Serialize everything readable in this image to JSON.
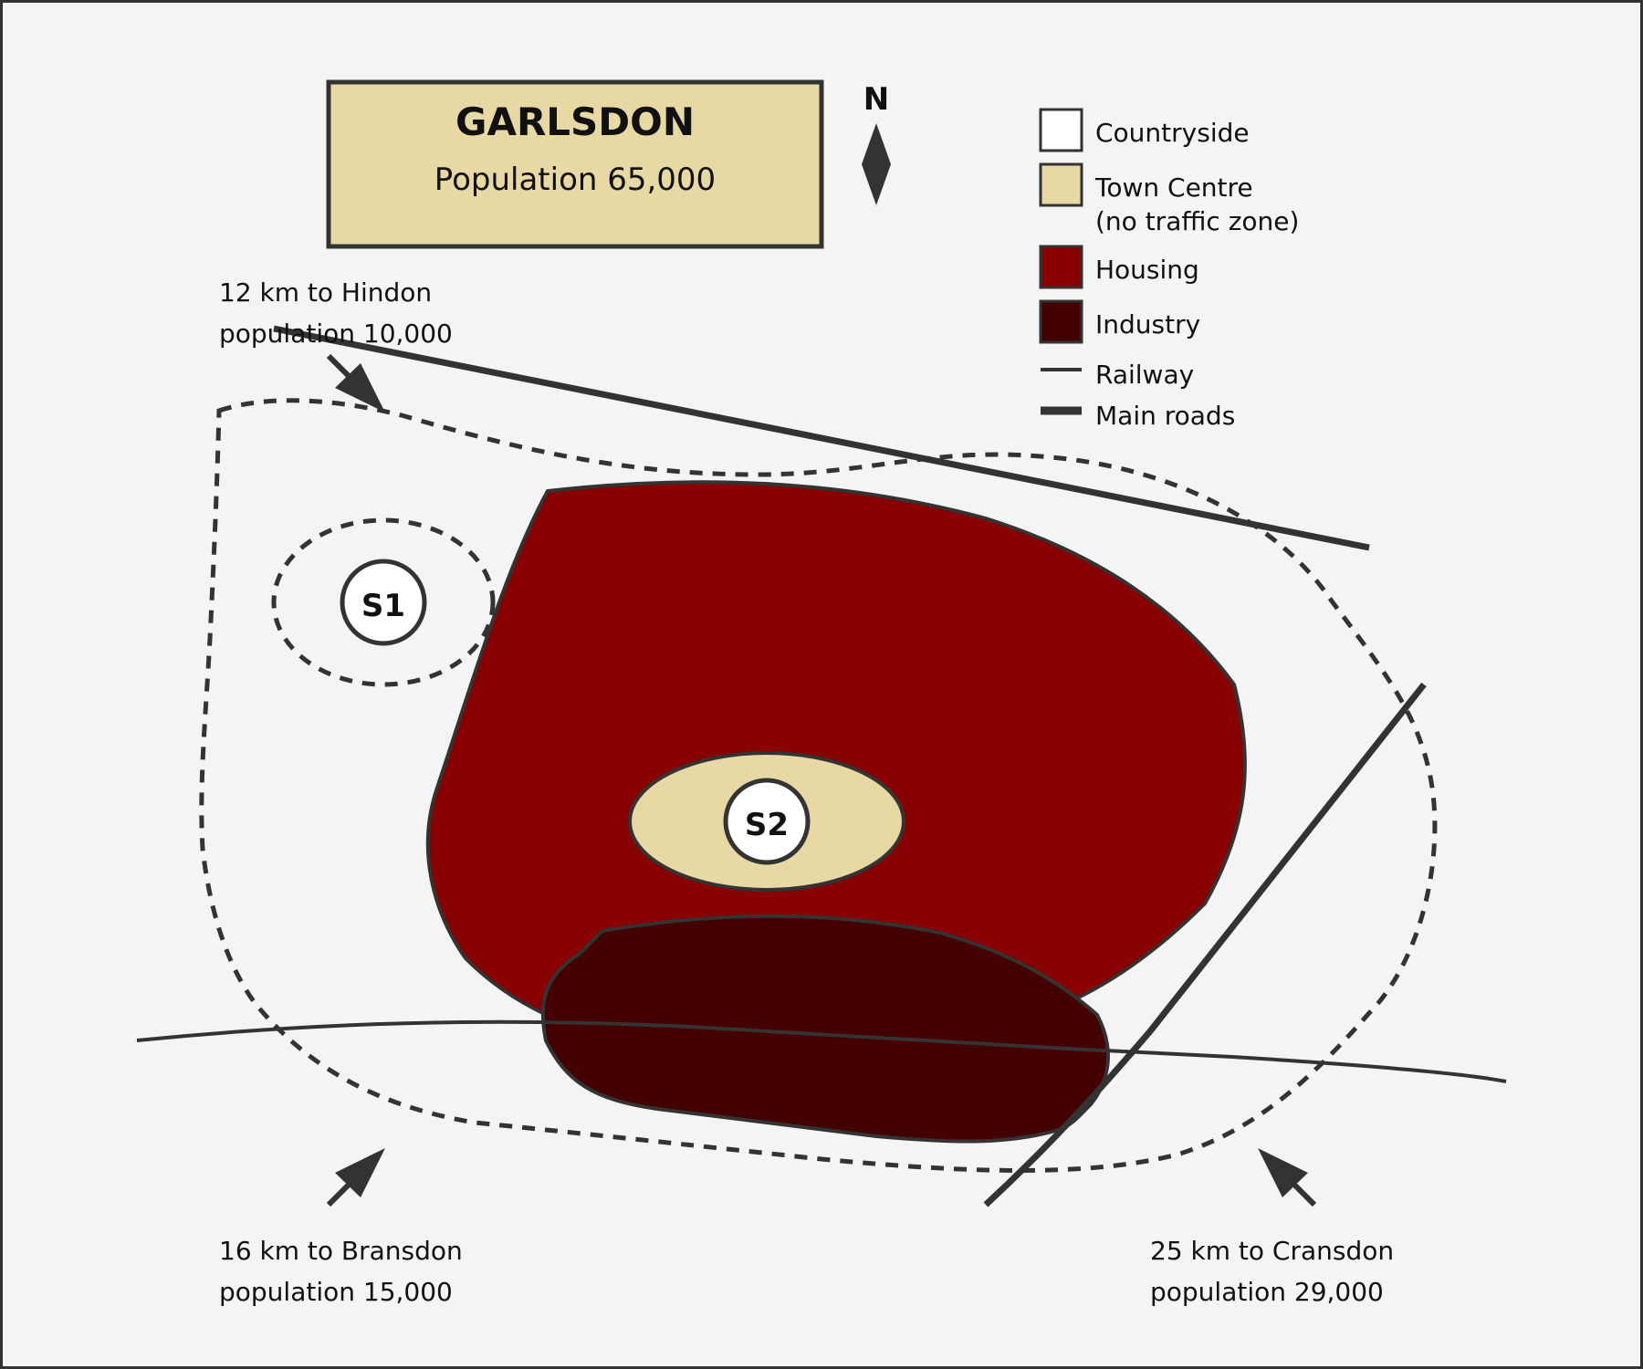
{
  "title": {
    "name": "GARLSDON",
    "population": "Population 65,000"
  },
  "north_label": "N",
  "legend": {
    "items": [
      {
        "key": "countryside",
        "label": "Countryside"
      },
      {
        "key": "town-centre",
        "label": "Town Centre",
        "label2": "(no traffic zone)"
      },
      {
        "key": "housing",
        "label": "Housing"
      },
      {
        "key": "industry",
        "label": "Industry"
      },
      {
        "key": "railway",
        "label": "Railway"
      },
      {
        "key": "main-roads",
        "label": "Main roads"
      }
    ]
  },
  "sites": {
    "s1": "S1",
    "s2": "S2"
  },
  "destinations": {
    "hindon": {
      "distance": "12 km to Hindon",
      "population": "population 10,000"
    },
    "bransdon": {
      "distance": "16 km to Bransdon",
      "population": "population 15,000"
    },
    "cransdon": {
      "distance": "25 km to Cransdon",
      "population": "population 29,000"
    }
  },
  "colors": {
    "background": "#f4f4f4",
    "countryside": "#ffffff",
    "town_centre": "#e8d8a4",
    "housing": "#880000",
    "industry": "#440000",
    "line": "#333333"
  }
}
